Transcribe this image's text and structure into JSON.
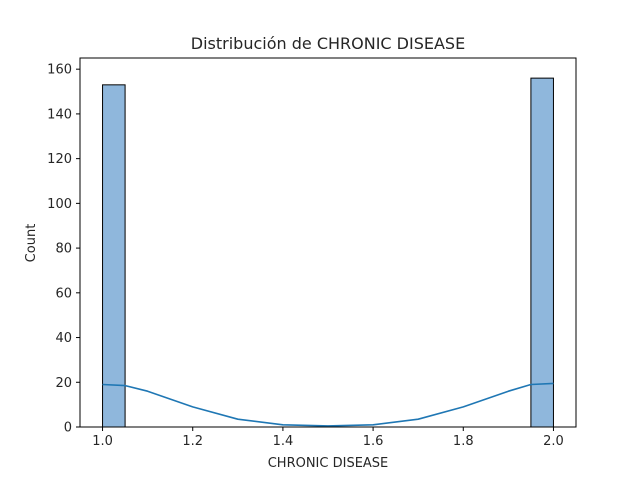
{
  "chart_data": {
    "type": "bar",
    "subtype": "histogram-with-kde",
    "title": "Distribución de CHRONIC DISEASE",
    "xlabel": "CHRONIC DISEASE",
    "ylabel": "Count",
    "xlim": [
      0.95,
      2.05
    ],
    "ylim": [
      0,
      165
    ],
    "x_ticks": [
      "1.0",
      "1.2",
      "1.4",
      "1.6",
      "1.8",
      "2.0"
    ],
    "y_ticks": [
      "0",
      "20",
      "40",
      "60",
      "80",
      "100",
      "120",
      "140",
      "160"
    ],
    "bins": [
      {
        "x_start": 1.0,
        "x_end": 1.05,
        "count": 153
      },
      {
        "x_start": 1.95,
        "x_end": 2.0,
        "count": 156
      }
    ],
    "kde": {
      "x": [
        1.0,
        1.05,
        1.1,
        1.2,
        1.3,
        1.4,
        1.5,
        1.6,
        1.7,
        1.8,
        1.9,
        1.95,
        2.0
      ],
      "y": [
        19,
        18.5,
        16,
        9,
        3.5,
        1,
        0.5,
        1,
        3.5,
        9,
        16,
        19,
        19.5
      ]
    },
    "grid": false,
    "colors": {
      "bar_fill": "#8fb7dc",
      "bar_edge": "#000000",
      "kde_line": "#1f77b4"
    }
  }
}
